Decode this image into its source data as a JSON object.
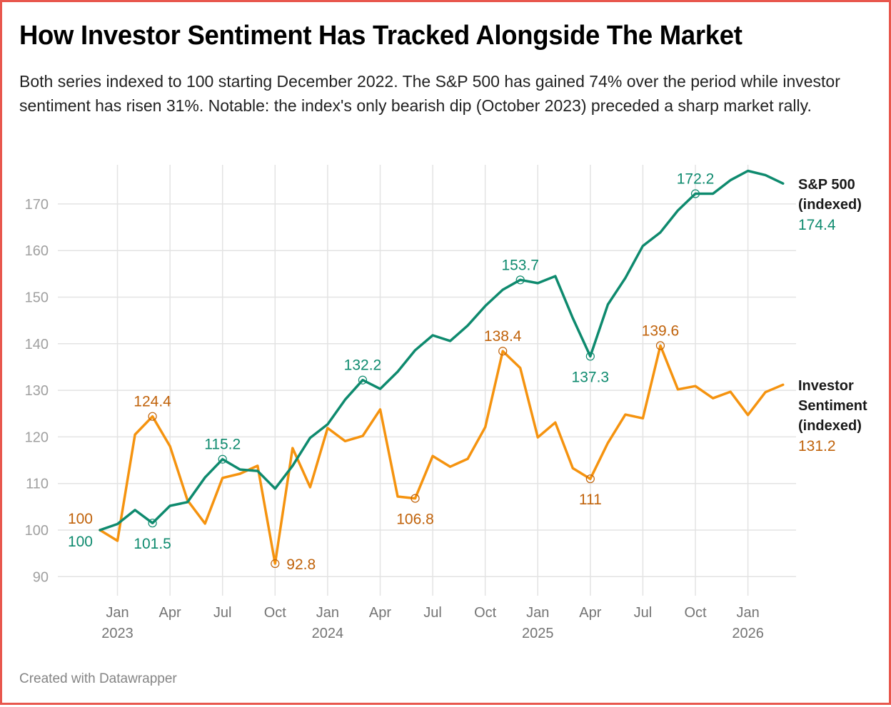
{
  "header": {
    "title": "How Investor Sentiment Has Tracked Alongside The Market",
    "subtitle": "Both series indexed to 100 starting December 2022. The S&P 500 has gained 74% over the period while investor sentiment has risen 31%. Notable: the index's only bearish dip (October 2023) preceded a sharp market rally."
  },
  "footer": {
    "credit": "Created with Datawrapper"
  },
  "colors": {
    "sp500": "#0e8a6e",
    "sentiment": "#f5930f",
    "sentiment_label": "#c0620a",
    "frame": "#e8574d"
  },
  "chart_data": {
    "type": "line",
    "title": "How Investor Sentiment Has Tracked Alongside The Market",
    "xlabel": "",
    "ylabel": "",
    "ylim": [
      87,
      178
    ],
    "yticks": [
      90,
      100,
      110,
      120,
      130,
      140,
      150,
      160,
      170
    ],
    "grid": true,
    "legend": "right (direct labels at line ends)",
    "x": [
      "2022-12",
      "2023-01",
      "2023-02",
      "2023-03",
      "2023-04",
      "2023-05",
      "2023-06",
      "2023-07",
      "2023-08",
      "2023-09",
      "2023-10",
      "2023-11",
      "2023-12",
      "2024-01",
      "2024-02",
      "2024-03",
      "2024-04",
      "2024-05",
      "2024-06",
      "2024-07",
      "2024-08",
      "2024-09",
      "2024-10",
      "2024-11",
      "2024-12",
      "2025-01",
      "2025-02",
      "2025-03",
      "2025-04",
      "2025-05",
      "2025-06",
      "2025-07",
      "2025-08",
      "2025-09",
      "2025-10",
      "2025-11",
      "2025-12",
      "2026-01",
      "2026-02",
      "2026-03"
    ],
    "xticks": [
      {
        "index": 1,
        "label": "Jan",
        "year": "2023"
      },
      {
        "index": 4,
        "label": "Apr",
        "year": ""
      },
      {
        "index": 7,
        "label": "Jul",
        "year": ""
      },
      {
        "index": 10,
        "label": "Oct",
        "year": ""
      },
      {
        "index": 13,
        "label": "Jan",
        "year": "2024"
      },
      {
        "index": 16,
        "label": "Apr",
        "year": ""
      },
      {
        "index": 19,
        "label": "Jul",
        "year": ""
      },
      {
        "index": 22,
        "label": "Oct",
        "year": ""
      },
      {
        "index": 25,
        "label": "Jan",
        "year": "2025"
      },
      {
        "index": 28,
        "label": "Apr",
        "year": ""
      },
      {
        "index": 31,
        "label": "Jul",
        "year": ""
      },
      {
        "index": 34,
        "label": "Oct",
        "year": ""
      },
      {
        "index": 37,
        "label": "Jan",
        "year": "2026"
      }
    ],
    "series": [
      {
        "key": "sp500",
        "name": "S&P 500 (indexed)",
        "name_lines": [
          "S&P 500",
          "(indexed)"
        ],
        "last_value_label": "174.4",
        "values": [
          100,
          101.3,
          104.3,
          101.5,
          105.2,
          106.0,
          111.3,
          115.2,
          113.0,
          112.7,
          108.9,
          113.8,
          119.8,
          122.7,
          128.0,
          132.2,
          130.3,
          134.0,
          138.6,
          141.8,
          140.6,
          143.9,
          148.1,
          151.6,
          153.7,
          153.0,
          154.5,
          145.5,
          137.3,
          148.4,
          154.1,
          161.0,
          163.9,
          168.6,
          172.2,
          172.2,
          175.1,
          177.1,
          176.2,
          174.4
        ],
        "annotations": [
          {
            "index": 0,
            "label": "100",
            "position": "start-below",
            "marker": false
          },
          {
            "index": 3,
            "label": "101.5",
            "position": "below",
            "marker": true
          },
          {
            "index": 7,
            "label": "115.2",
            "position": "above",
            "marker": true
          },
          {
            "index": 15,
            "label": "132.2",
            "position": "above",
            "marker": true
          },
          {
            "index": 24,
            "label": "153.7",
            "position": "above",
            "marker": true
          },
          {
            "index": 28,
            "label": "137.3",
            "position": "below",
            "marker": true
          },
          {
            "index": 34,
            "label": "172.2",
            "position": "above",
            "marker": true
          }
        ]
      },
      {
        "key": "sentiment",
        "name": "Investor Sentiment (indexed)",
        "name_lines": [
          "Investor",
          "Sentiment",
          "(indexed)"
        ],
        "last_value_label": "131.2",
        "values": [
          100,
          97.7,
          120.5,
          124.4,
          118.0,
          106.4,
          101.4,
          111.2,
          112.1,
          113.8,
          92.8,
          117.6,
          109.2,
          121.9,
          119.1,
          120.2,
          125.9,
          107.2,
          106.8,
          115.9,
          113.6,
          115.3,
          122.1,
          138.4,
          134.8,
          119.9,
          123.1,
          113.3,
          111.0,
          118.7,
          124.8,
          124.0,
          139.6,
          130.2,
          130.9,
          128.3,
          129.7,
          124.7,
          129.6,
          131.2
        ],
        "annotations": [
          {
            "index": 0,
            "label": "100",
            "position": "start-above",
            "marker": false
          },
          {
            "index": 3,
            "label": "124.4",
            "position": "above",
            "marker": true
          },
          {
            "index": 10,
            "label": "92.8",
            "position": "right",
            "marker": true
          },
          {
            "index": 18,
            "label": "106.8",
            "position": "below",
            "marker": true
          },
          {
            "index": 23,
            "label": "138.4",
            "position": "above",
            "marker": true
          },
          {
            "index": 28,
            "label": "111",
            "position": "below",
            "marker": true
          },
          {
            "index": 32,
            "label": "139.6",
            "position": "above",
            "marker": true
          }
        ]
      }
    ]
  }
}
